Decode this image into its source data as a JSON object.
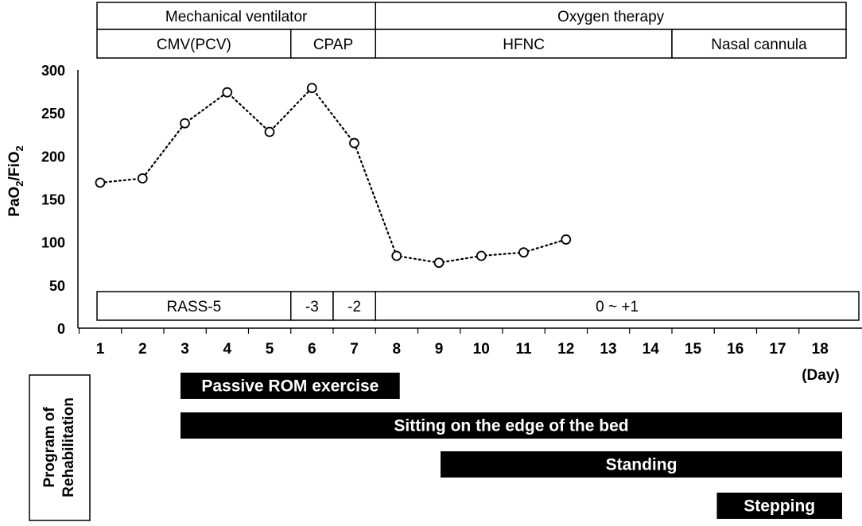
{
  "header": {
    "top_row": [
      {
        "label": "Mechanical ventilator",
        "from": 1,
        "to": 8
      },
      {
        "label": "Oxygen therapy",
        "from": 8,
        "to": 18
      }
    ],
    "bottom_row": [
      {
        "label": "CMV(PCV)",
        "from": 1,
        "to": 6
      },
      {
        "label": "CPAP",
        "from": 6,
        "to": 8
      },
      {
        "label": "HFNC",
        "from": 8,
        "to": 15
      },
      {
        "label": "Nasal cannula",
        "from": 15,
        "to": 18
      }
    ]
  },
  "rass": [
    {
      "label": "RASS-5",
      "from": 1,
      "to": 6
    },
    {
      "label": "-3",
      "from": 6,
      "to": 7
    },
    {
      "label": "-2",
      "from": 7,
      "to": 8
    },
    {
      "label": "0 ~ +1",
      "from": 8,
      "to": 18
    }
  ],
  "rehab": {
    "side_label": "Program of Rehabilitation",
    "bars": [
      {
        "label": "Passive ROM exercise",
        "start": 3,
        "end": 8.3
      },
      {
        "label": "Sitting on the edge of the bed",
        "start": 3,
        "end": 18
      },
      {
        "label": "Standing",
        "start": 9,
        "end": 18
      },
      {
        "label": "Stepping",
        "start": 15.6,
        "end": 18
      }
    ]
  },
  "chart_data": {
    "type": "line",
    "title": "",
    "xlabel": "(Day)",
    "ylabel": "PaO2/FiO2",
    "x": [
      1,
      2,
      3,
      4,
      5,
      6,
      7,
      8,
      9,
      10,
      11,
      12
    ],
    "series": [
      {
        "values": [
          169,
          174,
          238,
          274,
          228,
          279,
          215,
          84,
          76,
          84,
          88,
          103
        ],
        "line_style": "dotted",
        "marker": "open-circle",
        "color": "#000000"
      }
    ],
    "x_ticks": [
      "1",
      "2",
      "3",
      "4",
      "5",
      "6",
      "7",
      "8",
      "9",
      "10",
      "11",
      "12",
      "13",
      "14",
      "15",
      "16",
      "17",
      "18"
    ],
    "y_ticks": [
      0,
      50,
      100,
      150,
      200,
      250,
      300
    ],
    "ylim": [
      0,
      300
    ],
    "xlim": [
      1,
      18
    ],
    "grid": false
  }
}
